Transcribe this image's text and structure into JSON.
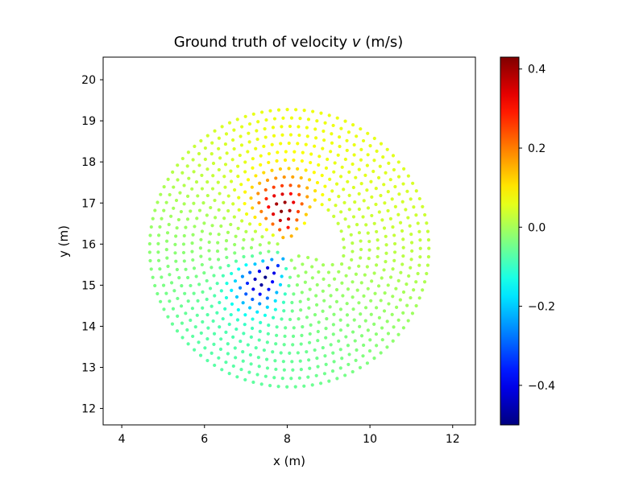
{
  "chart_data": {
    "type": "scatter",
    "title_prefix": "Ground truth of velocity ",
    "title_var": "v",
    "title_suffix": " (m/s)",
    "xlabel": "x (m)",
    "ylabel": "y (m)",
    "xlim": [
      3.55,
      12.55
    ],
    "ylim": [
      11.6,
      20.55
    ],
    "xticks": [
      4,
      6,
      8,
      10,
      12
    ],
    "yticks": [
      12,
      13,
      14,
      15,
      16,
      17,
      18,
      19,
      20
    ],
    "colorbar": {
      "colormap": "jet",
      "vmin": -0.5,
      "vmax": 0.43,
      "ticks": [
        0.4,
        0.2,
        0.0,
        -0.2,
        -0.4
      ],
      "tick_labels": [
        "0.4",
        "0.2",
        "0.0",
        "−0.2",
        "−0.4"
      ]
    },
    "field": {
      "center": [
        8.05,
        15.9
      ],
      "outer_radius": 3.55,
      "inner_radius": 0.3,
      "ring_spacing": 0.205,
      "point_spacing": 0.205,
      "notch_angle_range_deg": [
        -20,
        55
      ],
      "notch_radius": 1.15,
      "positive_lobe_angle_deg": 100,
      "negative_lobe_angle_deg": 230,
      "peak_positive": 0.42,
      "peak_negative": -0.49
    },
    "sample_points": [
      {
        "x": 7.9,
        "y": 16.7,
        "v": 0.42
      },
      {
        "x": 7.2,
        "y": 15.3,
        "v": -0.49
      },
      {
        "x": 9.5,
        "y": 17.2,
        "v": 0.02
      },
      {
        "x": 6.0,
        "y": 18.7,
        "v": 0.05
      },
      {
        "x": 5.6,
        "y": 13.8,
        "v": -0.12
      },
      {
        "x": 11.4,
        "y": 15.6,
        "v": 0.06
      }
    ]
  }
}
